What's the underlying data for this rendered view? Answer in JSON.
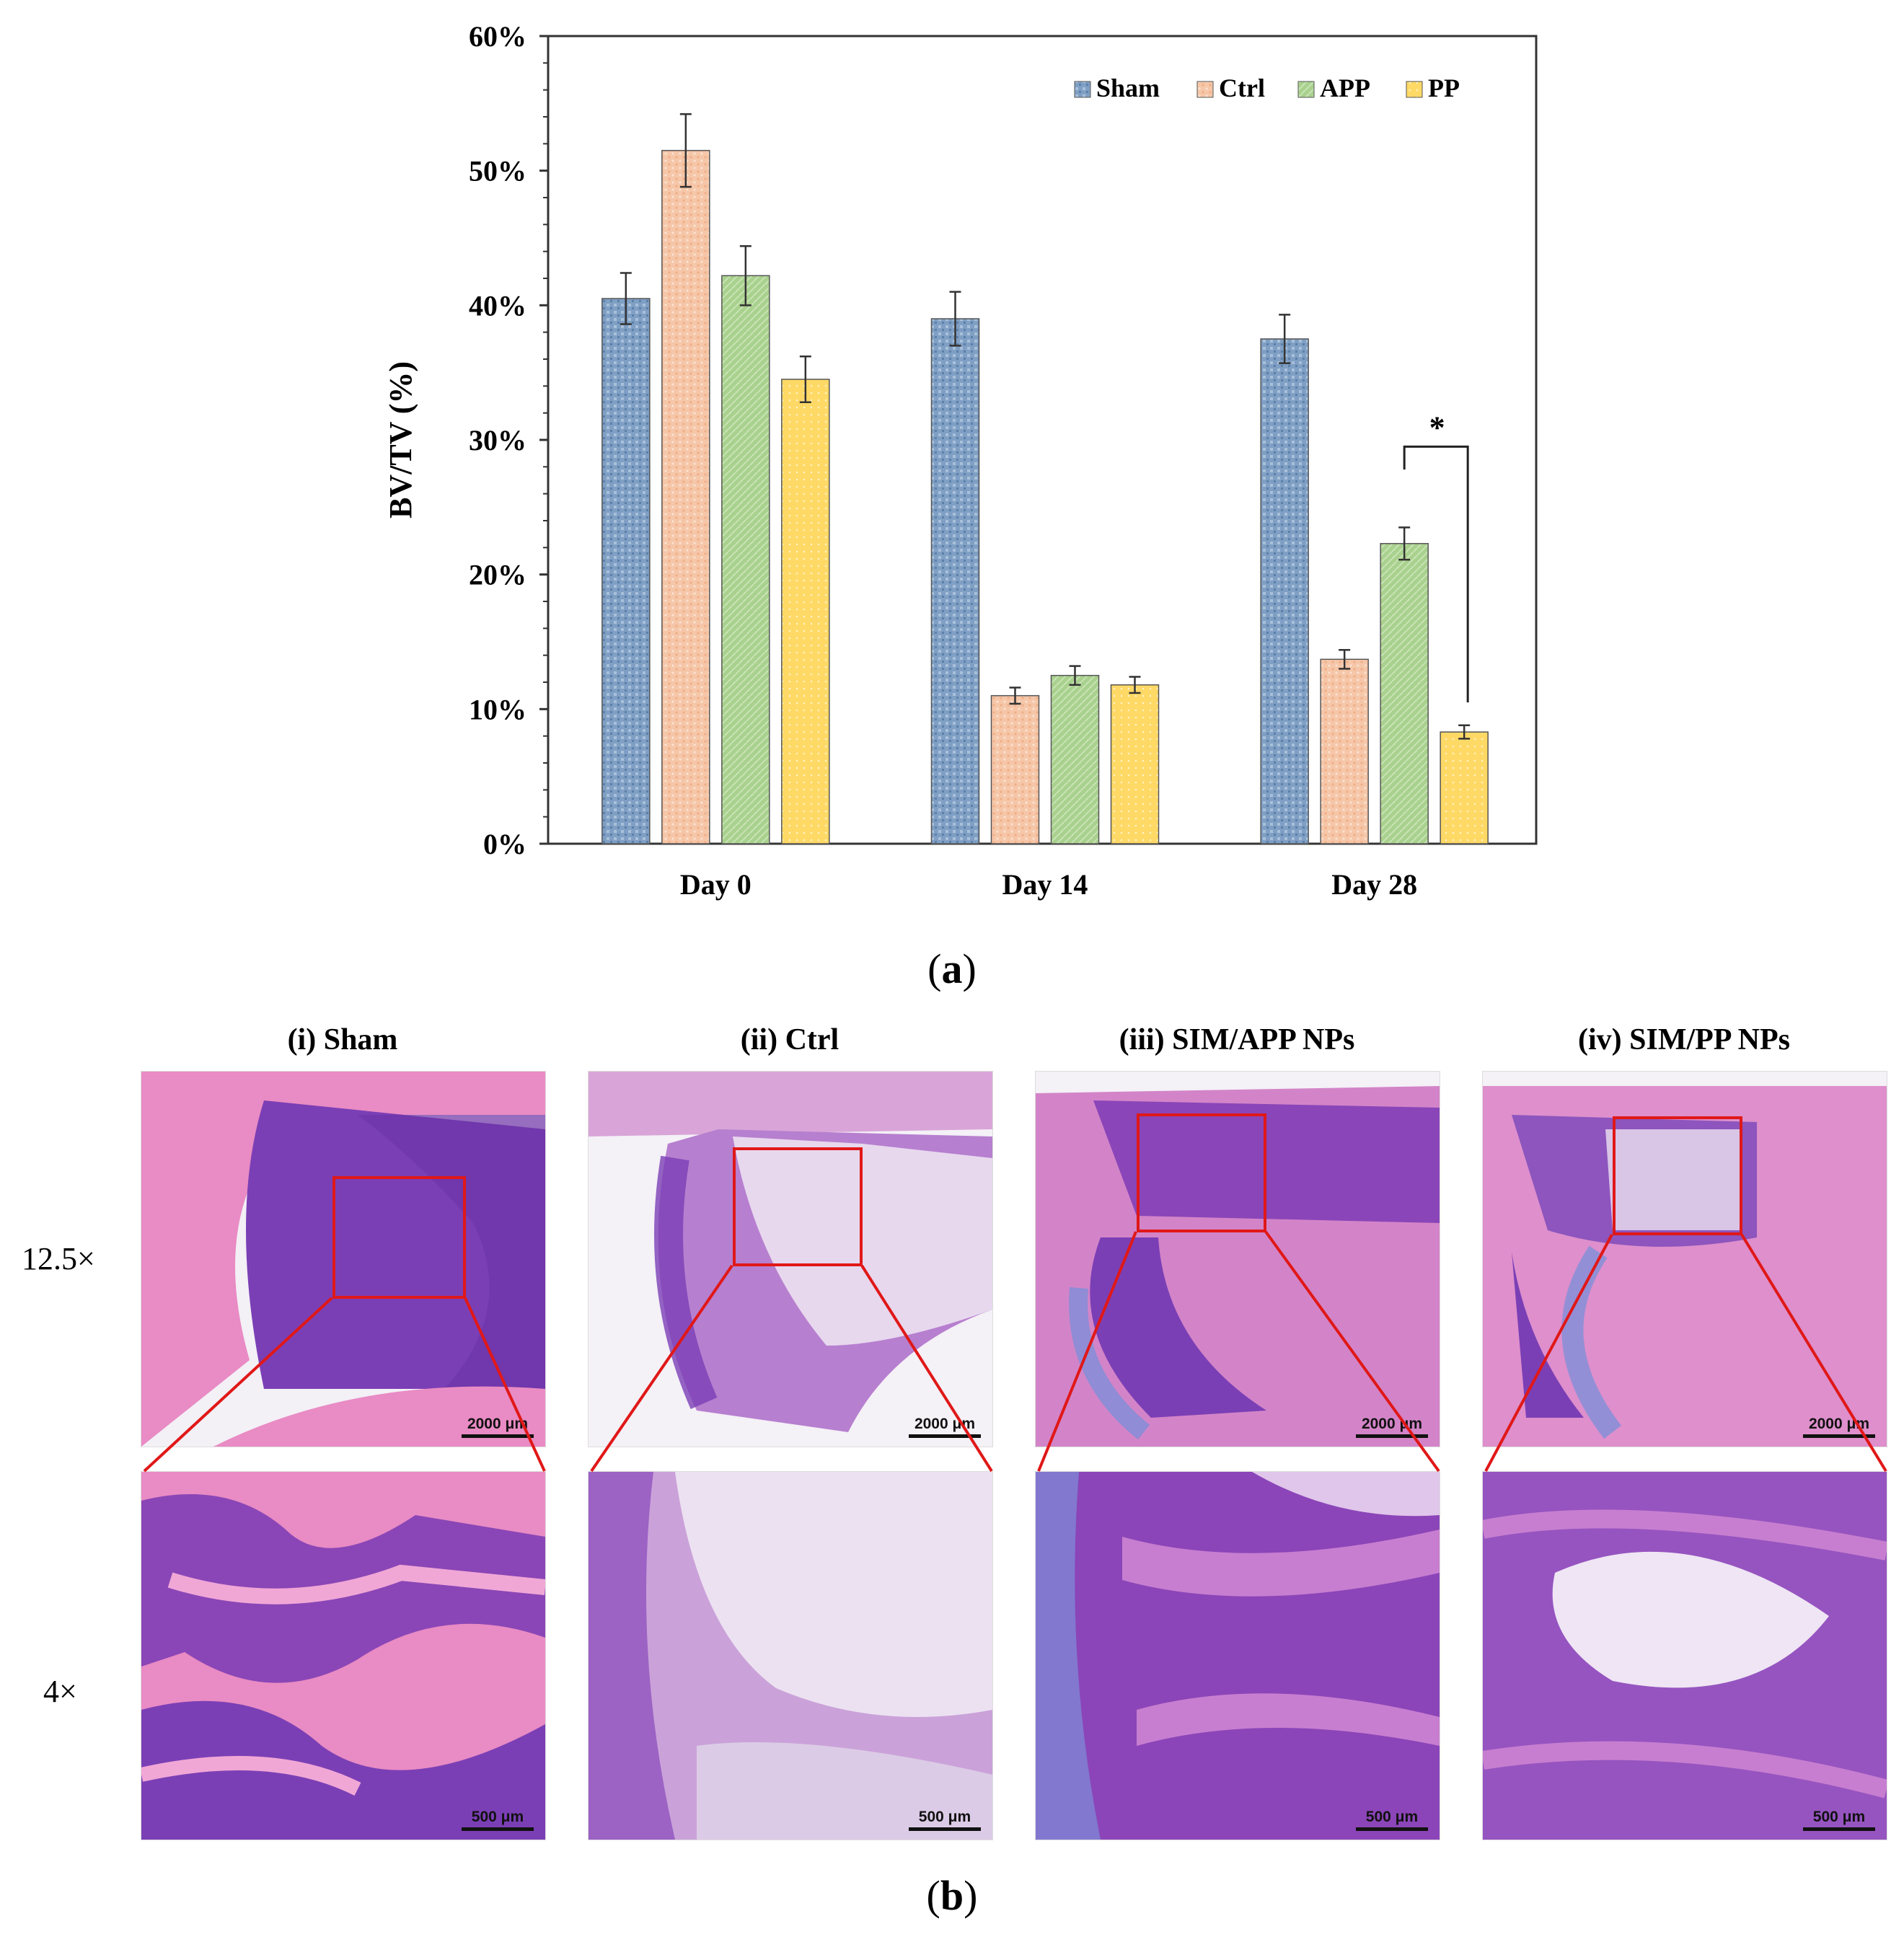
{
  "chart_data": {
    "type": "bar",
    "ylabel": "BV/TV (%)",
    "xlabel": "",
    "ylim": [
      0,
      60
    ],
    "yticks": [
      "0%",
      "10%",
      "20%",
      "30%",
      "40%",
      "50%",
      "60%"
    ],
    "categories": [
      "Day 0",
      "Day 14",
      "Day 28"
    ],
    "series": [
      {
        "name": "Sham",
        "values": [
          40.5,
          39.0,
          37.5
        ],
        "errors": [
          1.9,
          2.0,
          1.8
        ],
        "color": "#7f9fc4"
      },
      {
        "name": "Ctrl",
        "values": [
          51.5,
          11.0,
          13.7
        ],
        "errors": [
          2.7,
          0.6,
          0.7
        ],
        "color": "#f6c6a8"
      },
      {
        "name": "APP",
        "values": [
          42.2,
          12.5,
          22.3
        ],
        "errors": [
          2.2,
          0.7,
          1.2
        ],
        "color": "#a9d18e"
      },
      {
        "name": "PP",
        "values": [
          34.5,
          11.8,
          8.3
        ],
        "errors": [
          1.7,
          0.6,
          0.5
        ],
        "color": "#ffd966"
      }
    ],
    "legend_position": "top-right",
    "significance": {
      "label": "*",
      "category": "Day 28",
      "between": [
        "APP",
        "PP"
      ]
    }
  },
  "captions": {
    "a": "a",
    "b": "b"
  },
  "histology": {
    "columns": [
      {
        "title": "(i) Sham"
      },
      {
        "title": "(ii) Ctrl"
      },
      {
        "title": "(iii) SIM/APP NPs"
      },
      {
        "title": "(iv) SIM/PP NPs"
      }
    ],
    "rows": [
      {
        "label": "12.5×",
        "scale": "2000 μm"
      },
      {
        "label": "4×",
        "scale": "500 μm"
      }
    ],
    "colors": {
      "box": "#e01818",
      "tissue_pink": "#e98bc4",
      "tissue_purple": "#7b3fb5"
    }
  }
}
